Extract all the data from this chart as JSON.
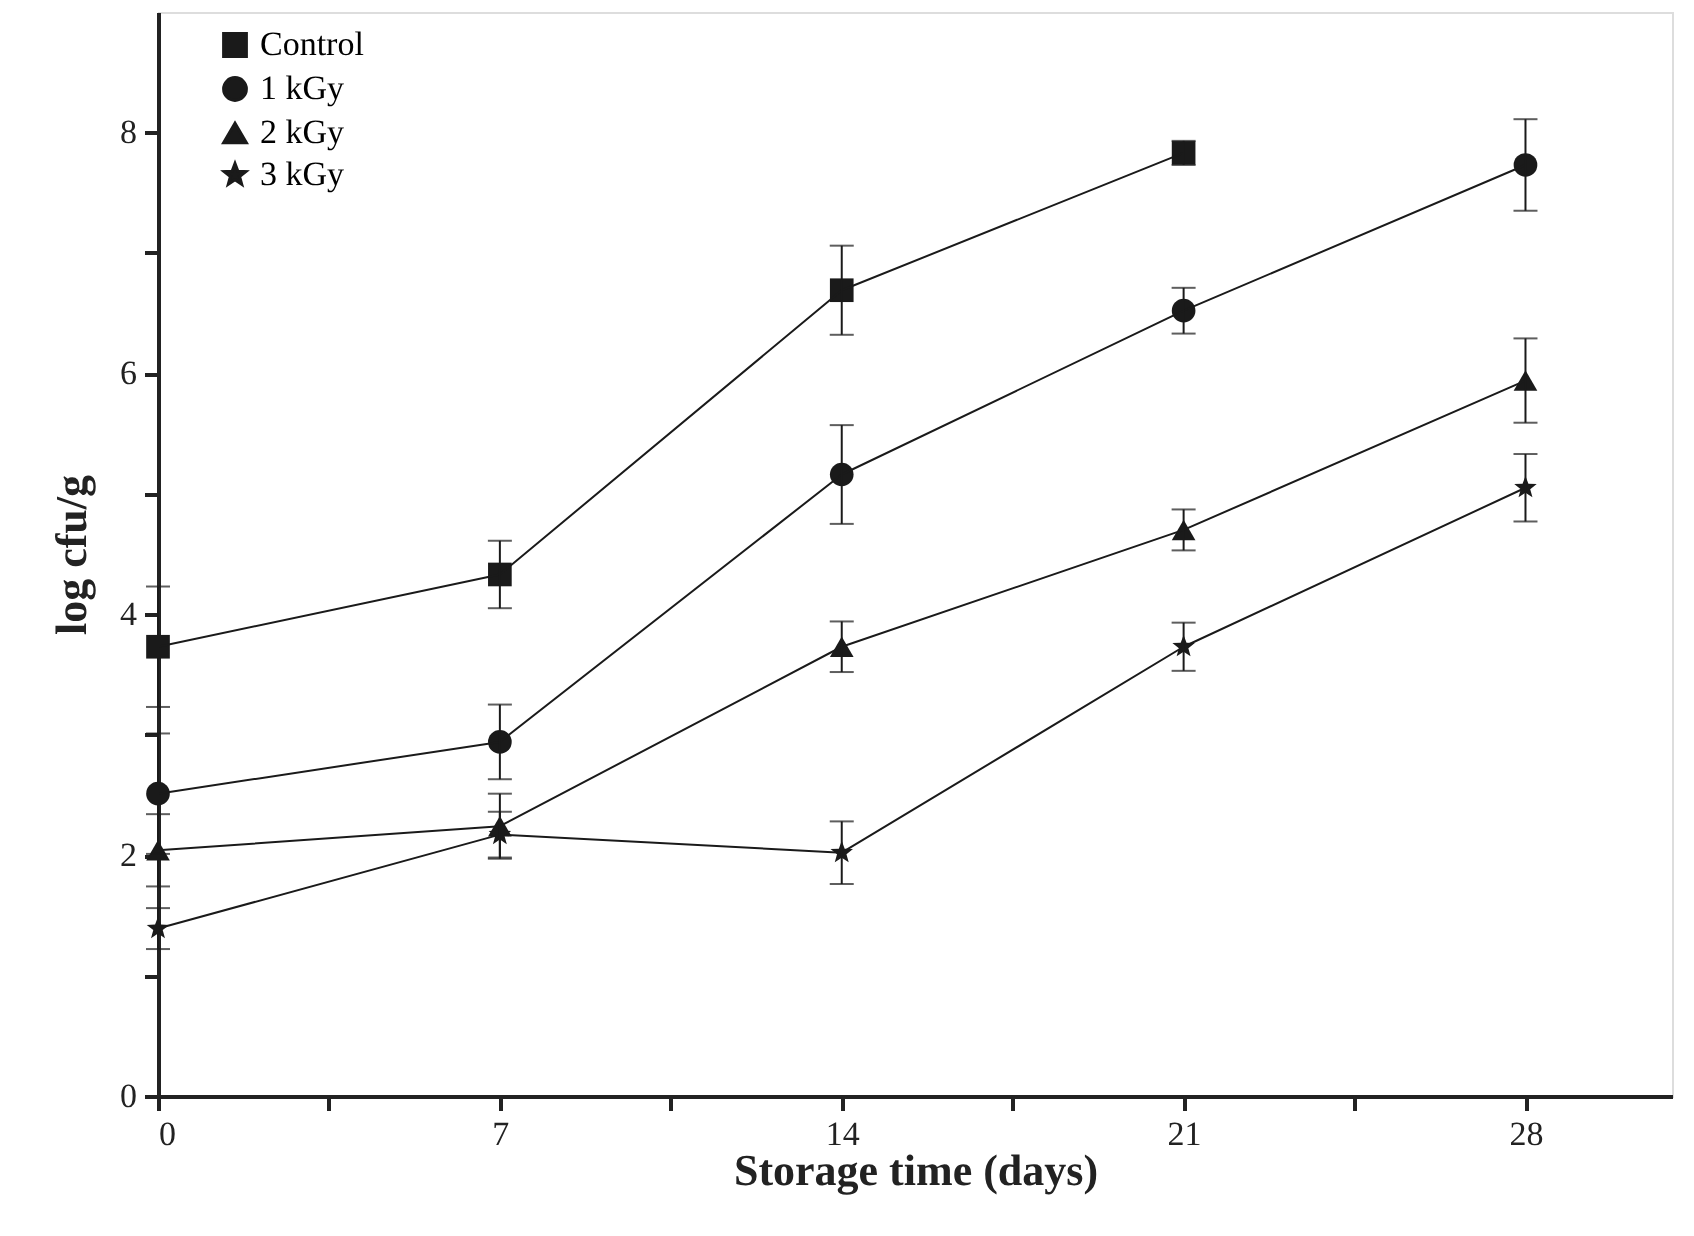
{
  "chart_data": {
    "type": "line",
    "xlabel": "Storage time (days)",
    "ylabel": "log cfu/g",
    "x": [
      0,
      7,
      14,
      21,
      28
    ],
    "xlim": [
      0,
      31
    ],
    "xticks": [
      0,
      {
        "value": 3.5,
        "label": null
      },
      7,
      {
        "value": 10.5,
        "label": null
      },
      14,
      {
        "value": 17.5,
        "label": null
      },
      21,
      {
        "value": 24.5,
        "label": null
      },
      28
    ],
    "ylim": [
      0,
      9
    ],
    "yticks": [
      0,
      {
        "value": 1,
        "label": null
      },
      2,
      {
        "value": 3,
        "label": null
      },
      4,
      {
        "value": 5,
        "label": null
      },
      6,
      {
        "value": 7,
        "label": null
      },
      8
    ],
    "grid": false,
    "legend": "top left",
    "line_style": "solid",
    "series": [
      {
        "name": "Control",
        "color": "#1a1a1a",
        "marker": "square",
        "values": [
          3.73,
          4.33,
          6.69,
          7.83,
          null
        ],
        "errors": [
          0.5,
          0.28,
          0.37,
          0.1,
          null
        ]
      },
      {
        "name": "1 kGy",
        "color": "#1a1a1a",
        "marker": "circle",
        "values": [
          2.51,
          2.94,
          5.16,
          6.52,
          7.73
        ],
        "errors": [
          0.5,
          0.31,
          0.41,
          0.19,
          0.38
        ]
      },
      {
        "name": "2 kGy",
        "color": "#1a1a1a",
        "marker": "triangle",
        "values": [
          2.04,
          2.24,
          3.73,
          4.7,
          5.94
        ],
        "errors": [
          0.3,
          0.27,
          0.21,
          0.17,
          0.35
        ]
      },
      {
        "name": "3 kGy",
        "color": "#1a1a1a",
        "marker": "star",
        "values": [
          1.39,
          2.17,
          2.02,
          3.73,
          5.05
        ],
        "errors": [
          0.17,
          0.19,
          0.26,
          0.2,
          0.28
        ]
      }
    ]
  }
}
